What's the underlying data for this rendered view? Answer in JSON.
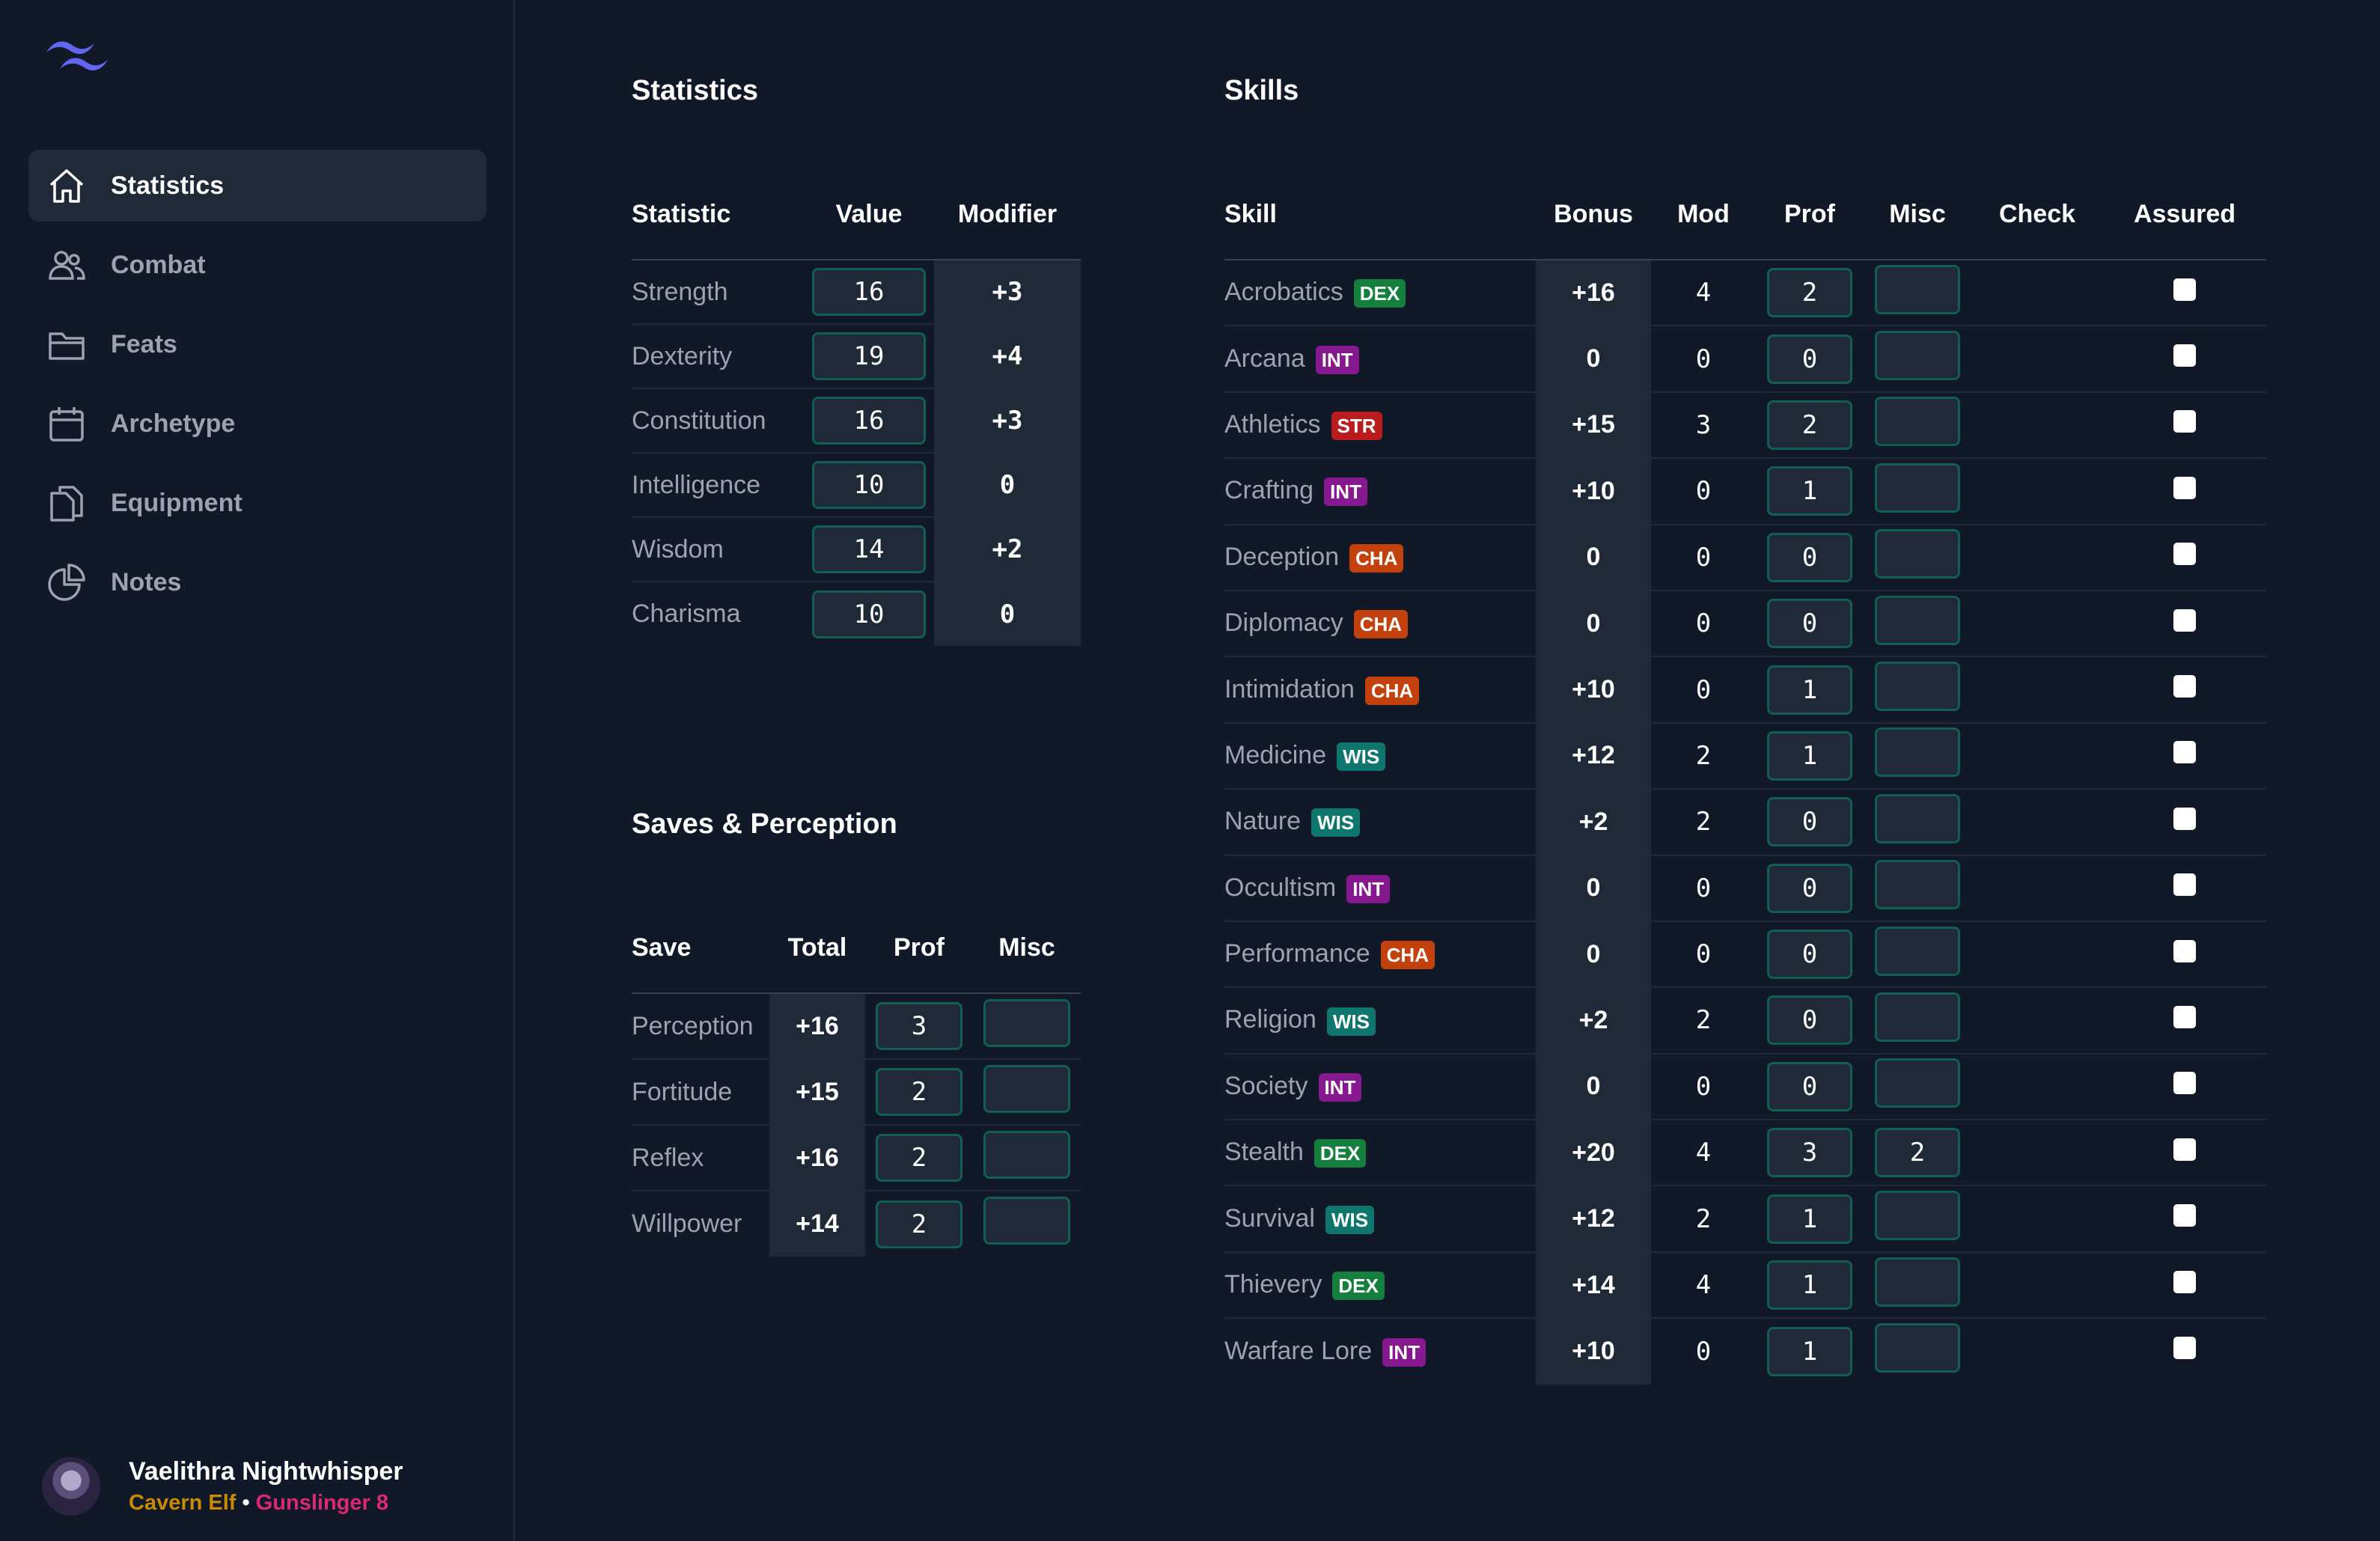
{
  "sidebar": {
    "items": [
      {
        "label": "Statistics",
        "icon": "home-icon",
        "active": true
      },
      {
        "label": "Combat",
        "icon": "users-icon",
        "active": false
      },
      {
        "label": "Feats",
        "icon": "folder-icon",
        "active": false
      },
      {
        "label": "Archetype",
        "icon": "calendar-icon",
        "active": false
      },
      {
        "label": "Equipment",
        "icon": "documents-icon",
        "active": false
      },
      {
        "label": "Notes",
        "icon": "pie-chart-icon",
        "active": false
      }
    ],
    "user": {
      "name": "Vaelithra Nightwhisper",
      "ancestry": "Cavern Elf",
      "separator": "•",
      "class": "Gunslinger 8"
    }
  },
  "statistics": {
    "title": "Statistics",
    "headers": [
      "Statistic",
      "Value",
      "Modifier"
    ],
    "rows": [
      {
        "name": "Strength",
        "value": "16",
        "modifier": "+3"
      },
      {
        "name": "Dexterity",
        "value": "19",
        "modifier": "+4"
      },
      {
        "name": "Constitution",
        "value": "16",
        "modifier": "+3"
      },
      {
        "name": "Intelligence",
        "value": "10",
        "modifier": "0"
      },
      {
        "name": "Wisdom",
        "value": "14",
        "modifier": "+2"
      },
      {
        "name": "Charisma",
        "value": "10",
        "modifier": "0"
      }
    ]
  },
  "saves": {
    "title": "Saves & Perception",
    "headers": [
      "Save",
      "Total",
      "Prof",
      "Misc"
    ],
    "rows": [
      {
        "name": "Perception",
        "total": "+16",
        "prof": "3",
        "misc": ""
      },
      {
        "name": "Fortitude",
        "total": "+15",
        "prof": "2",
        "misc": ""
      },
      {
        "name": "Reflex",
        "total": "+16",
        "prof": "2",
        "misc": ""
      },
      {
        "name": "Willpower",
        "total": "+14",
        "prof": "2",
        "misc": ""
      }
    ]
  },
  "skills": {
    "title": "Skills",
    "headers": [
      "Skill",
      "Bonus",
      "Mod",
      "Prof",
      "Misc",
      "Check",
      "Assured"
    ],
    "rows": [
      {
        "name": "Acrobatics",
        "attr": "DEX",
        "bonus": "+16",
        "mod": "4",
        "prof": "2",
        "misc": "",
        "assured": false
      },
      {
        "name": "Arcana",
        "attr": "INT",
        "bonus": "0",
        "mod": "0",
        "prof": "0",
        "misc": "",
        "assured": false
      },
      {
        "name": "Athletics",
        "attr": "STR",
        "bonus": "+15",
        "mod": "3",
        "prof": "2",
        "misc": "",
        "assured": false
      },
      {
        "name": "Crafting",
        "attr": "INT",
        "bonus": "+10",
        "mod": "0",
        "prof": "1",
        "misc": "",
        "assured": false
      },
      {
        "name": "Deception",
        "attr": "CHA",
        "bonus": "0",
        "mod": "0",
        "prof": "0",
        "misc": "",
        "assured": false
      },
      {
        "name": "Diplomacy",
        "attr": "CHA",
        "bonus": "0",
        "mod": "0",
        "prof": "0",
        "misc": "",
        "assured": false
      },
      {
        "name": "Intimidation",
        "attr": "CHA",
        "bonus": "+10",
        "mod": "0",
        "prof": "1",
        "misc": "",
        "assured": false
      },
      {
        "name": "Medicine",
        "attr": "WIS",
        "bonus": "+12",
        "mod": "2",
        "prof": "1",
        "misc": "",
        "assured": false
      },
      {
        "name": "Nature",
        "attr": "WIS",
        "bonus": "+2",
        "mod": "2",
        "prof": "0",
        "misc": "",
        "assured": false
      },
      {
        "name": "Occultism",
        "attr": "INT",
        "bonus": "0",
        "mod": "0",
        "prof": "0",
        "misc": "",
        "assured": false
      },
      {
        "name": "Performance",
        "attr": "CHA",
        "bonus": "0",
        "mod": "0",
        "prof": "0",
        "misc": "",
        "assured": false
      },
      {
        "name": "Religion",
        "attr": "WIS",
        "bonus": "+2",
        "mod": "2",
        "prof": "0",
        "misc": "",
        "assured": false
      },
      {
        "name": "Society",
        "attr": "INT",
        "bonus": "0",
        "mod": "0",
        "prof": "0",
        "misc": "",
        "assured": false
      },
      {
        "name": "Stealth",
        "attr": "DEX",
        "bonus": "+20",
        "mod": "4",
        "prof": "3",
        "misc": "2",
        "assured": false
      },
      {
        "name": "Survival",
        "attr": "WIS",
        "bonus": "+12",
        "mod": "2",
        "prof": "1",
        "misc": "",
        "assured": false
      },
      {
        "name": "Thievery",
        "attr": "DEX",
        "bonus": "+14",
        "mod": "4",
        "prof": "1",
        "misc": "",
        "assured": false
      },
      {
        "name": "Warfare Lore",
        "attr": "INT",
        "bonus": "+10",
        "mod": "0",
        "prof": "1",
        "misc": "",
        "assured": false
      }
    ]
  },
  "colors": {
    "background": "#111827",
    "panel": "#1f2937",
    "input_border": "#115e59",
    "accent_logo": "#6366f1",
    "ancestry": "#ca8a04",
    "class": "#db2777"
  }
}
